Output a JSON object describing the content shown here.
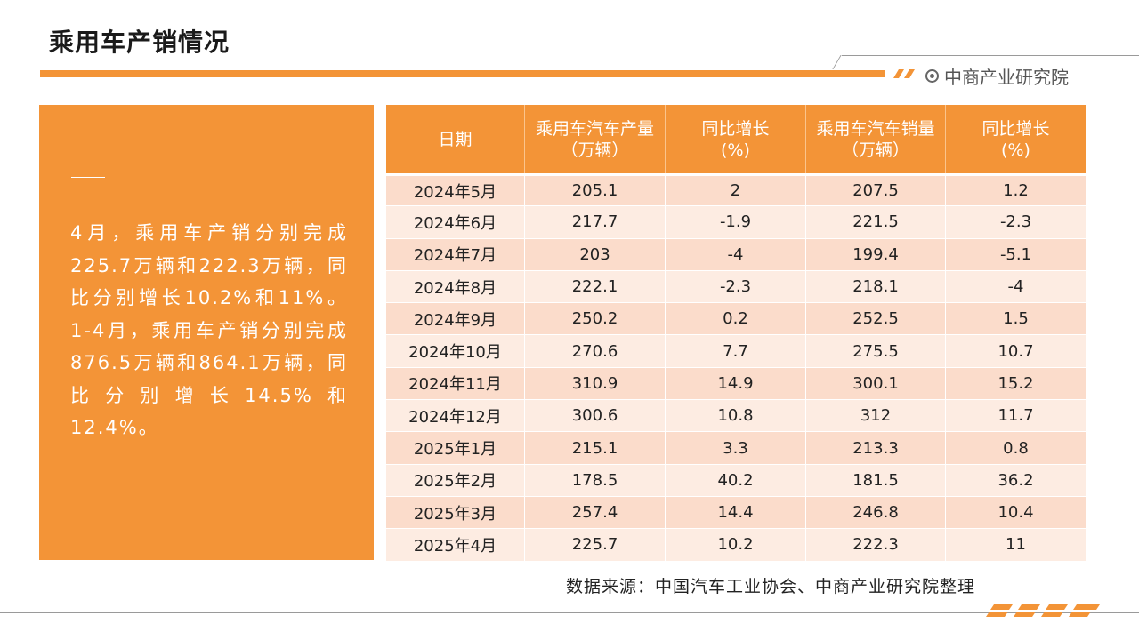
{
  "page": {
    "title": "乘用车产销情况"
  },
  "brand": {
    "name": "中商产业研究院"
  },
  "summary": {
    "text": "4月，乘用车产销分别完成225.7万辆和222.3万辆，同比分别增长10.2%和11%。1-4月，乘用车产销分别完成876.5万辆和864.1万辆，同比分别增长14.5%和12.4%。"
  },
  "table": {
    "headers": [
      {
        "line1": "日期",
        "line2": ""
      },
      {
        "line1": "乘用车汽车产量",
        "line2": "（万辆）"
      },
      {
        "line1": "同比增长",
        "line2": "(%)"
      },
      {
        "line1": "乘用车汽车销量",
        "line2": "（万辆）"
      },
      {
        "line1": "同比增长",
        "line2": "(%)"
      }
    ],
    "rows": [
      [
        "2024年5月",
        "205.1",
        "2",
        "207.5",
        "1.2"
      ],
      [
        "2024年6月",
        "217.7",
        "-1.9",
        "221.5",
        "-2.3"
      ],
      [
        "2024年7月",
        "203",
        "-4",
        "199.4",
        "-5.1"
      ],
      [
        "2024年8月",
        "222.1",
        "-2.3",
        "218.1",
        "-4"
      ],
      [
        "2024年9月",
        "250.2",
        "0.2",
        "252.5",
        "1.5"
      ],
      [
        "2024年10月",
        "270.6",
        "7.7",
        "275.5",
        "10.7"
      ],
      [
        "2024年11月",
        "310.9",
        "14.9",
        "300.1",
        "15.2"
      ],
      [
        "2024年12月",
        "300.6",
        "10.8",
        "312",
        "11.7"
      ],
      [
        "2025年1月",
        "215.1",
        "3.3",
        "213.3",
        "0.8"
      ],
      [
        "2025年2月",
        "178.5",
        "40.2",
        "181.5",
        "36.2"
      ],
      [
        "2025年3月",
        "257.4",
        "14.4",
        "246.8",
        "10.4"
      ],
      [
        "2025年4月",
        "225.7",
        "10.2",
        "222.3",
        "11"
      ]
    ]
  },
  "source": {
    "text": "数据来源：中国汽车工业协会、中商产业研究院整理"
  },
  "colors": {
    "accent": "#f39437",
    "row_odd": "#fbdccb",
    "row_even": "#fdece2"
  }
}
